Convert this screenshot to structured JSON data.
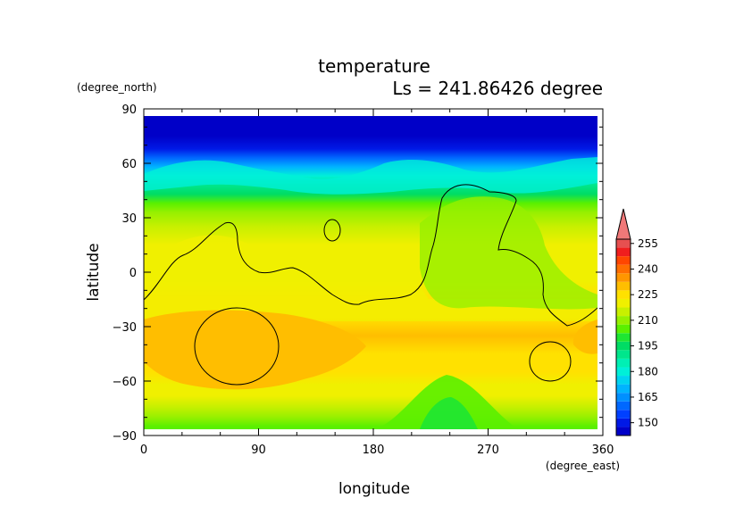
{
  "chart_data": {
    "type": "heatmap",
    "title": "temperature",
    "subtitle": "Ls = 241.86426 degree",
    "xlabel": "longitude",
    "ylabel": "latitude",
    "xunit": "(degree_east)",
    "yunit": "(degree_north)",
    "xlim": [
      0,
      360
    ],
    "ylim": [
      -90,
      90
    ],
    "xticks": [
      "0",
      "90",
      "180",
      "270",
      "360"
    ],
    "yticks": [
      "90",
      "60",
      "30",
      "0",
      "−30",
      "−60",
      "−90"
    ],
    "colorbar": {
      "ticks": [
        "255",
        "240",
        "225",
        "210",
        "195",
        "180",
        "165",
        "150"
      ],
      "levels": [
        {
          "value": 145,
          "color": "#0000c8"
        },
        {
          "value": 150,
          "color": "#0019e6"
        },
        {
          "value": 155,
          "color": "#0040ff"
        },
        {
          "value": 160,
          "color": "#0068ff"
        },
        {
          "value": 165,
          "color": "#0090ff"
        },
        {
          "value": 170,
          "color": "#00b4ff"
        },
        {
          "value": 175,
          "color": "#00d4f0"
        },
        {
          "value": 180,
          "color": "#00f0d8"
        },
        {
          "value": 185,
          "color": "#00f0b4"
        },
        {
          "value": 190,
          "color": "#00e68c"
        },
        {
          "value": 195,
          "color": "#00dc64"
        },
        {
          "value": 200,
          "color": "#1ee632"
        },
        {
          "value": 205,
          "color": "#5af000"
        },
        {
          "value": 210,
          "color": "#96f000"
        },
        {
          "value": 215,
          "color": "#c8f000"
        },
        {
          "value": 220,
          "color": "#f0f000"
        },
        {
          "value": 225,
          "color": "#ffe100"
        },
        {
          "value": 230,
          "color": "#ffbe00"
        },
        {
          "value": 235,
          "color": "#ff9600"
        },
        {
          "value": 240,
          "color": "#ff6e00"
        },
        {
          "value": 245,
          "color": "#ff4600"
        },
        {
          "value": 250,
          "color": "#f01e1e"
        },
        {
          "value": 255,
          "color": "#e65050"
        },
        {
          "value": 260,
          "color": "#f07878"
        }
      ]
    },
    "bands": [
      {
        "lat": 85,
        "value": 145
      },
      {
        "lat": 75,
        "value": 147
      },
      {
        "lat": 68,
        "value": 150
      },
      {
        "lat": 63,
        "value": 160
      },
      {
        "lat": 58,
        "value": 170
      },
      {
        "lat": 53,
        "value": 180
      },
      {
        "lat": 48,
        "value": 190
      },
      {
        "lat": 43,
        "value": 198
      },
      {
        "lat": 38,
        "value": 205
      },
      {
        "lat": 33,
        "value": 210
      },
      {
        "lat": 25,
        "value": 215
      },
      {
        "lat": 15,
        "value": 220
      },
      {
        "lat": 5,
        "value": 222
      },
      {
        "lat": -5,
        "value": 224
      },
      {
        "lat": -15,
        "value": 225
      },
      {
        "lat": -25,
        "value": 227
      },
      {
        "lat": -35,
        "value": 230
      },
      {
        "lat": -45,
        "value": 229
      },
      {
        "lat": -55,
        "value": 226
      },
      {
        "lat": -62,
        "value": 224
      },
      {
        "lat": -68,
        "value": 221
      },
      {
        "lat": -74,
        "value": 216
      },
      {
        "lat": -80,
        "value": 210
      },
      {
        "lat": -85,
        "value": 205
      }
    ]
  }
}
